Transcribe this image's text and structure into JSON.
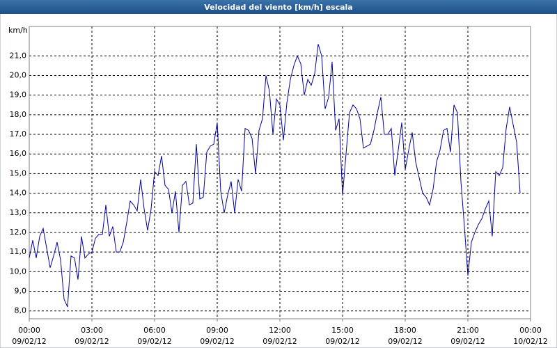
{
  "chart_data": {
    "type": "line",
    "title": "Velocidad del viento [km/h] escala",
    "y_unit": "km/h",
    "xlim": [
      0,
      1440
    ],
    "xticks": [
      {
        "value": 0,
        "label": "00:00"
      },
      {
        "value": 180,
        "label": "03:00"
      },
      {
        "value": 360,
        "label": "06:00"
      },
      {
        "value": 540,
        "label": "09:00"
      },
      {
        "value": 720,
        "label": "12:00"
      },
      {
        "value": 900,
        "label": "15:00"
      },
      {
        "value": 1080,
        "label": "18:00"
      },
      {
        "value": 1260,
        "label": "21:00"
      },
      {
        "value": 1440,
        "label": "00:00"
      }
    ],
    "xtick_dates": [
      "09/02/12",
      "09/02/12",
      "09/02/12",
      "09/02/12",
      "09/02/12",
      "09/02/12",
      "09/02/12",
      "09/02/12",
      "10/02/12"
    ],
    "ylim": [
      7.6,
      22.5
    ],
    "yticks": [
      {
        "value": 8,
        "label": "8,0"
      },
      {
        "value": 9,
        "label": "9,0"
      },
      {
        "value": 10,
        "label": "10,0"
      },
      {
        "value": 11,
        "label": "11,0"
      },
      {
        "value": 12,
        "label": "12,0"
      },
      {
        "value": 13,
        "label": "13,0"
      },
      {
        "value": 14,
        "label": "14,0"
      },
      {
        "value": 15,
        "label": "15,0"
      },
      {
        "value": 16,
        "label": "16,0"
      },
      {
        "value": 17,
        "label": "17,0"
      },
      {
        "value": 18,
        "label": "18,0"
      },
      {
        "value": 19,
        "label": "19,0"
      },
      {
        "value": 20,
        "label": "20,0"
      },
      {
        "value": 21,
        "label": "21,0"
      }
    ],
    "grid": true,
    "x": [
      0,
      10,
      20,
      30,
      40,
      50,
      60,
      70,
      80,
      90,
      100,
      110,
      120,
      130,
      140,
      150,
      160,
      170,
      180,
      190,
      200,
      210,
      220,
      230,
      240,
      250,
      260,
      270,
      280,
      290,
      300,
      310,
      320,
      330,
      340,
      350,
      360,
      370,
      380,
      390,
      400,
      410,
      420,
      430,
      440,
      450,
      460,
      470,
      480,
      490,
      500,
      510,
      520,
      530,
      540,
      550,
      560,
      570,
      580,
      590,
      600,
      610,
      620,
      630,
      640,
      650,
      660,
      670,
      680,
      690,
      700,
      710,
      720,
      730,
      740,
      750,
      760,
      770,
      780,
      790,
      800,
      810,
      820,
      830,
      840,
      850,
      860,
      870,
      880,
      890,
      900,
      910,
      920,
      930,
      940,
      950,
      960,
      970,
      980,
      990,
      1000,
      1010,
      1020,
      1030,
      1040,
      1050,
      1060,
      1070,
      1080,
      1090,
      1100,
      1110,
      1120,
      1130,
      1140,
      1150,
      1160,
      1170,
      1180,
      1190,
      1200,
      1210,
      1220,
      1230,
      1240,
      1250,
      1260,
      1270,
      1280,
      1290,
      1300,
      1310,
      1320,
      1330,
      1340,
      1350,
      1360,
      1370,
      1380,
      1390,
      1400,
      1410
    ],
    "series": [
      {
        "name": "Velocidad del viento",
        "color": "#0000a0",
        "values": [
          10.7,
          11.6,
          10.7,
          11.8,
          12.2,
          11.2,
          10.2,
          10.8,
          11.5,
          10.6,
          8.6,
          8.2,
          10.8,
          10.7,
          9.6,
          11.8,
          10.7,
          10.9,
          11.0,
          11.7,
          11.9,
          11.9,
          13.4,
          11.8,
          12.3,
          11.0,
          11.0,
          11.5,
          12.5,
          13.6,
          13.4,
          13.1,
          14.7,
          13.2,
          12.1,
          13.2,
          15.1,
          14.9,
          15.9,
          14.4,
          14.2,
          13.0,
          14.1,
          12.0,
          14.4,
          14.6,
          13.4,
          13.5,
          16.5,
          13.7,
          13.8,
          16.1,
          16.4,
          16.5,
          17.6,
          14.1,
          13.0,
          13.9,
          14.6,
          13.0,
          14.7,
          14.1,
          17.3,
          17.2,
          16.8,
          15.0,
          17.2,
          17.8,
          20.0,
          19.2,
          17.0,
          18.8,
          18.5,
          16.7,
          18.6,
          19.8,
          20.5,
          21.0,
          20.6,
          19.0,
          19.8,
          19.5,
          20.1,
          21.6,
          21.0,
          18.3,
          18.9,
          20.7,
          17.2,
          17.8,
          13.9,
          16.0,
          18.1,
          18.5,
          18.3,
          17.8,
          16.3,
          16.4,
          16.5,
          17.2,
          18.1,
          18.9,
          17.0,
          17.0,
          17.3,
          14.9,
          16.2,
          17.6,
          15.2,
          16.2,
          17.1,
          15.6,
          14.8,
          14.0,
          13.8,
          13.4,
          14.2,
          15.6,
          16.2,
          17.2,
          17.3,
          16.1,
          18.5,
          18.1,
          14.6,
          12.3,
          9.8,
          11.5,
          12.0,
          12.4,
          12.7,
          13.2,
          13.6,
          11.8,
          15.1,
          14.9,
          15.3,
          17.3,
          18.4,
          17.5,
          16.6,
          14.0
        ]
      }
    ]
  }
}
